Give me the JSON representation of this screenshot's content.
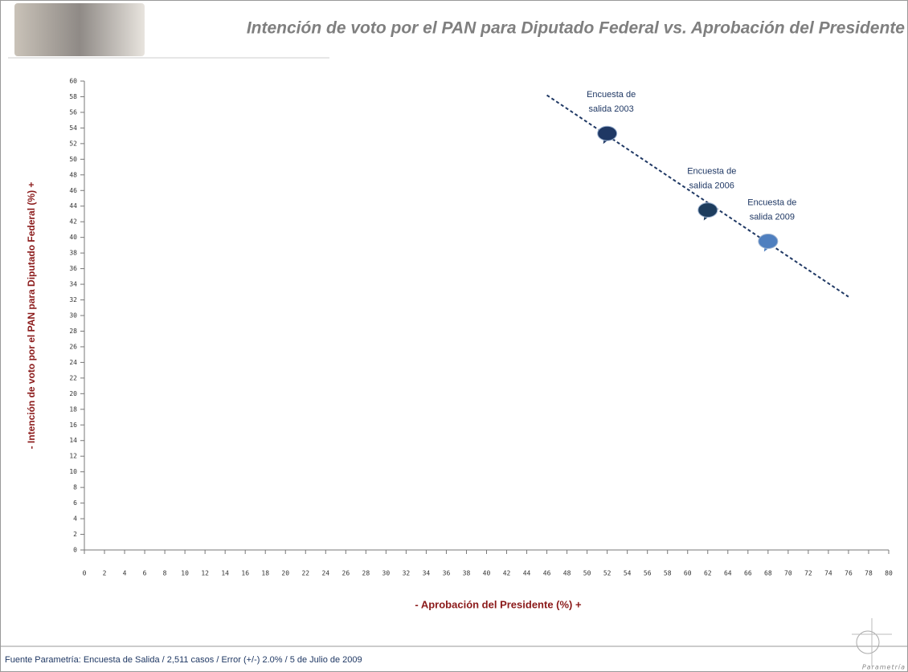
{
  "chart_data": {
    "type": "scatter",
    "title": "Intención de voto por el PAN para Diputado Federal vs. Aprobación del Presidente",
    "x_label": "- Aprobación del Presidente (%) +",
    "y_label": "- Intención de voto por el PAN para Diputado Federal (%) +",
    "source": "Fuente Parametría: Encuesta de Salida / 2,511 casos / Error (+/-) 2.0% / 5 de Julio de 2009",
    "logo_text": "Parametría",
    "xlim": [
      0,
      80
    ],
    "ylim": [
      0,
      60
    ],
    "xticks": [
      0,
      2,
      4,
      6,
      8,
      10,
      12,
      14,
      16,
      18,
      20,
      22,
      24,
      26,
      28,
      30,
      32,
      34,
      36,
      38,
      40,
      42,
      44,
      46,
      48,
      50,
      52,
      54,
      56,
      58,
      60,
      62,
      64,
      66,
      68,
      70,
      72,
      74,
      76,
      78,
      80
    ],
    "yticks": [
      0,
      2,
      4,
      6,
      8,
      10,
      12,
      14,
      16,
      18,
      20,
      22,
      24,
      26,
      28,
      30,
      32,
      34,
      36,
      38,
      40,
      42,
      44,
      46,
      48,
      50,
      52,
      54,
      56,
      58,
      60
    ],
    "series": [
      {
        "x": [
          52,
          62,
          68
        ],
        "y": [
          53.3,
          43.5,
          39.5
        ],
        "colors": [
          "#1f3864",
          "#1d3d5e",
          "#4f7fbf"
        ],
        "labels": [
          [
            "Encuesta de",
            "salida 2003"
          ],
          [
            "Encuesta de",
            "salida 2006"
          ],
          [
            "Encuesta de",
            "salida 2009"
          ]
        ]
      }
    ],
    "trendline": {
      "x": [
        46,
        76
      ],
      "y": [
        58.2,
        32.4
      ],
      "color": "#1f3864"
    }
  }
}
